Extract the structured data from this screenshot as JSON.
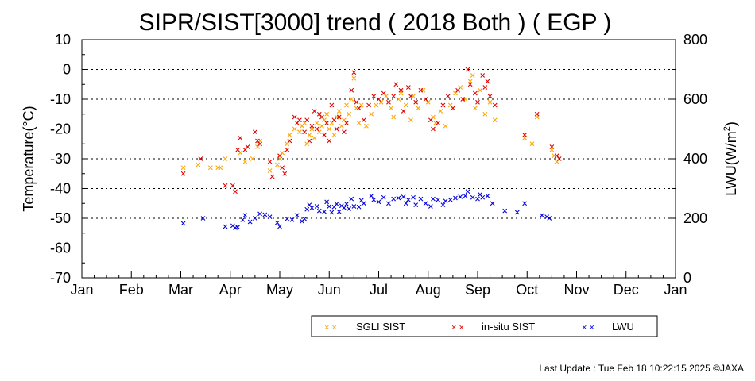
{
  "chart_data": {
    "type": "scatter",
    "title": "SIPR/SIST[3000] trend ( 2018 Both ) ( EGP )",
    "ylabel": "Temperature(°C)",
    "y2label_main": "LWU(W/m",
    "y2label_sup": "2",
    "y2label_end": ")",
    "ylim": [
      -70,
      10
    ],
    "y_ticks": [
      "10",
      "0",
      "-10",
      "-20",
      "-30",
      "-40",
      "-50",
      "-60",
      "-70"
    ],
    "y2lim": [
      0,
      800
    ],
    "y2_ticks": [
      "800",
      "600",
      "400",
      "200",
      "0"
    ],
    "x_ticks": [
      "Jan",
      "Feb",
      "Mar",
      "Apr",
      "May",
      "Jun",
      "Jul",
      "Aug",
      "Sep",
      "Oct",
      "Nov",
      "Dec",
      "Jan"
    ],
    "grid": "horizontal dotted every 10°C",
    "legend_position": "bottom-right",
    "series": [
      {
        "name": "SGLI SIST",
        "color": "#ffa500",
        "axis": "left",
        "points": [
          [
            2.05,
            -33
          ],
          [
            2.35,
            -32
          ],
          [
            2.6,
            -33
          ],
          [
            2.75,
            -33
          ],
          [
            2.8,
            -33
          ],
          [
            2.9,
            -30
          ],
          [
            3.2,
            -28
          ],
          [
            3.3,
            -31
          ],
          [
            3.45,
            -30
          ],
          [
            3.55,
            -26
          ],
          [
            3.6,
            -24
          ],
          [
            3.8,
            -34
          ],
          [
            3.95,
            -32
          ],
          [
            4.0,
            -30
          ],
          [
            4.05,
            -28
          ],
          [
            4.15,
            -25
          ],
          [
            4.2,
            -22
          ],
          [
            4.3,
            -20
          ],
          [
            4.4,
            -21
          ],
          [
            4.45,
            -19
          ],
          [
            4.5,
            -18
          ],
          [
            4.55,
            -25
          ],
          [
            4.6,
            -22
          ],
          [
            4.65,
            -20
          ],
          [
            4.7,
            -23
          ],
          [
            4.75,
            -18
          ],
          [
            4.8,
            -21
          ],
          [
            4.85,
            -19
          ],
          [
            4.9,
            -17
          ],
          [
            4.95,
            -15
          ],
          [
            5.0,
            -20
          ],
          [
            5.05,
            -18
          ],
          [
            5.1,
            -22
          ],
          [
            5.15,
            -16
          ],
          [
            5.2,
            -14
          ],
          [
            5.25,
            -19
          ],
          [
            5.3,
            -17
          ],
          [
            5.35,
            -12
          ],
          [
            5.4,
            -15
          ],
          [
            5.45,
            -10
          ],
          [
            5.5,
            -3
          ],
          [
            5.55,
            -13
          ],
          [
            5.6,
            -18
          ],
          [
            5.65,
            -12
          ],
          [
            5.75,
            -19
          ],
          [
            5.85,
            -15
          ],
          [
            5.95,
            -12
          ],
          [
            6.05,
            -11
          ],
          [
            6.15,
            -9
          ],
          [
            6.25,
            -13
          ],
          [
            6.3,
            -16
          ],
          [
            6.4,
            -10
          ],
          [
            6.45,
            -8
          ],
          [
            6.55,
            -12
          ],
          [
            6.65,
            -17
          ],
          [
            6.7,
            -9
          ],
          [
            6.8,
            -13
          ],
          [
            6.9,
            -7
          ],
          [
            7.0,
            -11
          ],
          [
            7.1,
            -16
          ],
          [
            7.15,
            -18
          ],
          [
            7.25,
            -14
          ],
          [
            7.35,
            -19
          ],
          [
            7.45,
            -12
          ],
          [
            7.55,
            -8
          ],
          [
            7.65,
            -6
          ],
          [
            7.75,
            -10
          ],
          [
            7.85,
            -4
          ],
          [
            7.9,
            -2
          ],
          [
            7.95,
            -13
          ],
          [
            8.05,
            -7
          ],
          [
            8.15,
            -15
          ],
          [
            8.25,
            -11
          ],
          [
            8.35,
            -17
          ],
          [
            8.95,
            -23
          ],
          [
            9.1,
            -25
          ],
          [
            9.2,
            -16
          ],
          [
            9.5,
            -27
          ],
          [
            9.55,
            -29
          ],
          [
            9.6,
            -31
          ]
        ]
      },
      {
        "name": "in-situ SIST",
        "color": "#e00000",
        "axis": "left",
        "points": [
          [
            2.05,
            -35
          ],
          [
            2.4,
            -30
          ],
          [
            2.9,
            -39
          ],
          [
            3.05,
            -39
          ],
          [
            3.1,
            -41
          ],
          [
            3.15,
            -27
          ],
          [
            3.2,
            -23
          ],
          [
            3.3,
            -27
          ],
          [
            3.35,
            -26
          ],
          [
            3.5,
            -21
          ],
          [
            3.55,
            -24
          ],
          [
            3.6,
            -25
          ],
          [
            3.8,
            -31
          ],
          [
            3.85,
            -36
          ],
          [
            4.0,
            -29
          ],
          [
            4.05,
            -33
          ],
          [
            4.1,
            -35
          ],
          [
            4.15,
            -27
          ],
          [
            4.2,
            -24
          ],
          [
            4.3,
            -16
          ],
          [
            4.35,
            -18
          ],
          [
            4.4,
            -17
          ],
          [
            4.5,
            -21
          ],
          [
            4.55,
            -17
          ],
          [
            4.6,
            -24
          ],
          [
            4.65,
            -19
          ],
          [
            4.7,
            -14
          ],
          [
            4.75,
            -20
          ],
          [
            4.8,
            -15
          ],
          [
            4.85,
            -16
          ],
          [
            4.9,
            -22
          ],
          [
            4.95,
            -18
          ],
          [
            5.0,
            -24
          ],
          [
            5.05,
            -12
          ],
          [
            5.1,
            -17
          ],
          [
            5.15,
            -20
          ],
          [
            5.2,
            -16
          ],
          [
            5.3,
            -21
          ],
          [
            5.35,
            -18
          ],
          [
            5.45,
            -7
          ],
          [
            5.5,
            -1
          ],
          [
            5.55,
            -11
          ],
          [
            5.6,
            -13
          ],
          [
            5.7,
            -17
          ],
          [
            5.8,
            -12
          ],
          [
            5.9,
            -9
          ],
          [
            6.0,
            -10
          ],
          [
            6.1,
            -8
          ],
          [
            6.2,
            -11
          ],
          [
            6.3,
            -9
          ],
          [
            6.35,
            -5
          ],
          [
            6.45,
            -7
          ],
          [
            6.5,
            -14
          ],
          [
            6.6,
            -6
          ],
          [
            6.65,
            -9
          ],
          [
            6.75,
            -11
          ],
          [
            6.85,
            -7
          ],
          [
            6.95,
            -10
          ],
          [
            7.05,
            -17
          ],
          [
            7.1,
            -20
          ],
          [
            7.2,
            -18
          ],
          [
            7.3,
            -12
          ],
          [
            7.4,
            -9
          ],
          [
            7.5,
            -13
          ],
          [
            7.6,
            -7
          ],
          [
            7.7,
            -10
          ],
          [
            7.8,
            0
          ],
          [
            7.85,
            -5
          ],
          [
            7.95,
            -8
          ],
          [
            8.0,
            -11
          ],
          [
            8.1,
            -2
          ],
          [
            8.15,
            -6
          ],
          [
            8.2,
            -4
          ],
          [
            8.25,
            -9
          ],
          [
            8.35,
            -12
          ],
          [
            8.95,
            -22
          ],
          [
            9.2,
            -15
          ],
          [
            9.5,
            -26
          ],
          [
            9.6,
            -29
          ],
          [
            9.65,
            -30
          ]
        ]
      },
      {
        "name": "LWU",
        "color": "#0000dd",
        "axis": "right",
        "points": [
          [
            2.05,
            183
          ],
          [
            2.45,
            200
          ],
          [
            2.9,
            172
          ],
          [
            3.05,
            175
          ],
          [
            3.1,
            168
          ],
          [
            3.15,
            170
          ],
          [
            3.25,
            195
          ],
          [
            3.3,
            210
          ],
          [
            3.4,
            188
          ],
          [
            3.5,
            200
          ],
          [
            3.6,
            215
          ],
          [
            3.7,
            212
          ],
          [
            3.8,
            205
          ],
          [
            3.95,
            185
          ],
          [
            4.0,
            172
          ],
          [
            4.15,
            198
          ],
          [
            4.25,
            195
          ],
          [
            4.35,
            210
          ],
          [
            4.45,
            190
          ],
          [
            4.5,
            198
          ],
          [
            4.55,
            230
          ],
          [
            4.6,
            245
          ],
          [
            4.65,
            235
          ],
          [
            4.75,
            240
          ],
          [
            4.8,
            225
          ],
          [
            4.9,
            222
          ],
          [
            4.95,
            255
          ],
          [
            5.0,
            240
          ],
          [
            5.05,
            220
          ],
          [
            5.1,
            238
          ],
          [
            5.15,
            248
          ],
          [
            5.2,
            222
          ],
          [
            5.25,
            242
          ],
          [
            5.3,
            235
          ],
          [
            5.35,
            248
          ],
          [
            5.4,
            232
          ],
          [
            5.45,
            265
          ],
          [
            5.5,
            240
          ],
          [
            5.6,
            238
          ],
          [
            5.65,
            260
          ],
          [
            5.7,
            250
          ],
          [
            5.85,
            275
          ],
          [
            5.9,
            262
          ],
          [
            6.0,
            255
          ],
          [
            6.1,
            270
          ],
          [
            6.2,
            250
          ],
          [
            6.3,
            265
          ],
          [
            6.4,
            268
          ],
          [
            6.5,
            272
          ],
          [
            6.55,
            250
          ],
          [
            6.6,
            262
          ],
          [
            6.7,
            270
          ],
          [
            6.75,
            245
          ],
          [
            6.85,
            265
          ],
          [
            6.95,
            250
          ],
          [
            7.05,
            240
          ],
          [
            7.1,
            265
          ],
          [
            7.2,
            262
          ],
          [
            7.3,
            245
          ],
          [
            7.35,
            258
          ],
          [
            7.45,
            262
          ],
          [
            7.55,
            268
          ],
          [
            7.65,
            272
          ],
          [
            7.75,
            275
          ],
          [
            7.8,
            290
          ],
          [
            7.9,
            270
          ],
          [
            8.0,
            265
          ],
          [
            8.05,
            280
          ],
          [
            8.1,
            270
          ],
          [
            8.2,
            275
          ],
          [
            8.3,
            250
          ],
          [
            8.55,
            225
          ],
          [
            8.8,
            220
          ],
          [
            8.95,
            250
          ],
          [
            9.3,
            210
          ],
          [
            9.4,
            205
          ],
          [
            9.45,
            200
          ]
        ]
      }
    ]
  },
  "footer": "Last Update : Tue Feb 18 10:22:15 2025  ©JAXA"
}
